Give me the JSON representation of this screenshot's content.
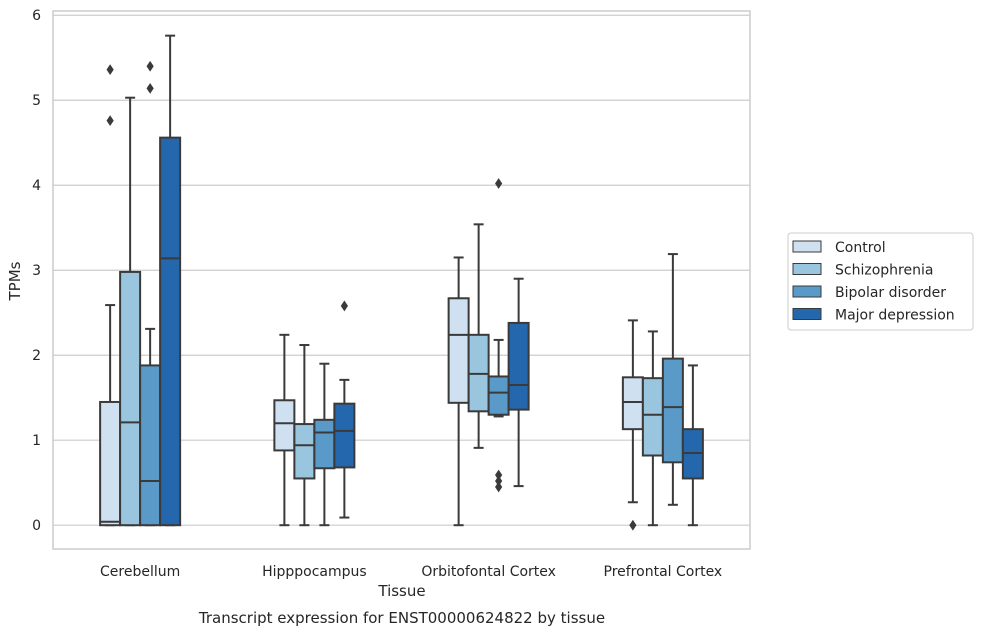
{
  "chart_data": {
    "type": "box",
    "title": "",
    "caption": "Transcript expression for ENST00000624822 by tissue",
    "xlabel": "Tissue",
    "ylabel": "TPMs",
    "ylim": [
      -0.28,
      6.05
    ],
    "yticks": [
      0,
      1,
      2,
      3,
      4,
      5,
      6
    ],
    "grid": true,
    "legend_position": "right",
    "categories": [
      "Cerebellum",
      "Hipppocampus",
      "Orbitofontal Cortex",
      "Prefrontal Cortex"
    ],
    "series": [
      {
        "name": "Control",
        "color": "#cfe0f1",
        "boxes": [
          {
            "whislo": 0.0,
            "q1": 0.0,
            "med": 0.04,
            "q3": 1.45,
            "whishi": 2.59,
            "fliers": [
              4.76,
              5.36
            ]
          },
          {
            "whislo": 0.0,
            "q1": 0.88,
            "med": 1.2,
            "q3": 1.47,
            "whishi": 2.24,
            "fliers": []
          },
          {
            "whislo": 0.0,
            "q1": 1.44,
            "med": 2.24,
            "q3": 2.67,
            "whishi": 3.15,
            "fliers": []
          },
          {
            "whislo": 0.27,
            "q1": 1.13,
            "med": 1.45,
            "q3": 1.74,
            "whishi": 2.41,
            "fliers": [
              0.0
            ]
          }
        ]
      },
      {
        "name": "Schizophrenia",
        "color": "#9ac5df",
        "boxes": [
          {
            "whislo": 0.0,
            "q1": 0.0,
            "med": 1.21,
            "q3": 2.98,
            "whishi": 5.03,
            "fliers": []
          },
          {
            "whislo": 0.0,
            "q1": 0.55,
            "med": 0.94,
            "q3": 1.19,
            "whishi": 2.12,
            "fliers": []
          },
          {
            "whislo": 0.91,
            "q1": 1.34,
            "med": 1.78,
            "q3": 2.24,
            "whishi": 3.54,
            "fliers": []
          },
          {
            "whislo": 0.0,
            "q1": 0.82,
            "med": 1.3,
            "q3": 1.73,
            "whishi": 2.28,
            "fliers": []
          }
        ]
      },
      {
        "name": "Bipolar disorder",
        "color": "#5a9ac9",
        "boxes": [
          {
            "whislo": 0.0,
            "q1": 0.0,
            "med": 0.52,
            "q3": 1.88,
            "whishi": 2.31,
            "fliers": [
              5.14,
              5.4
            ]
          },
          {
            "whislo": 0.0,
            "q1": 0.67,
            "med": 1.09,
            "q3": 1.24,
            "whishi": 1.9,
            "fliers": []
          },
          {
            "whislo": 1.28,
            "q1": 1.3,
            "med": 1.56,
            "q3": 1.75,
            "whishi": 2.18,
            "fliers": [
              0.45,
              0.52,
              0.59,
              4.02
            ]
          },
          {
            "whislo": 0.24,
            "q1": 0.74,
            "med": 1.39,
            "q3": 1.96,
            "whishi": 3.19,
            "fliers": []
          }
        ]
      },
      {
        "name": "Major depression",
        "color": "#2567ac",
        "boxes": [
          {
            "whislo": 0.0,
            "q1": 0.0,
            "med": 3.14,
            "q3": 4.56,
            "whishi": 5.76,
            "fliers": []
          },
          {
            "whislo": 0.09,
            "q1": 0.68,
            "med": 1.11,
            "q3": 1.43,
            "whishi": 1.71,
            "fliers": [
              2.58
            ]
          },
          {
            "whislo": 0.46,
            "q1": 1.36,
            "med": 1.65,
            "q3": 2.38,
            "whishi": 2.9,
            "fliers": []
          },
          {
            "whislo": 0.0,
            "q1": 0.55,
            "med": 0.85,
            "q3": 1.13,
            "whishi": 1.88,
            "fliers": []
          }
        ]
      }
    ]
  }
}
